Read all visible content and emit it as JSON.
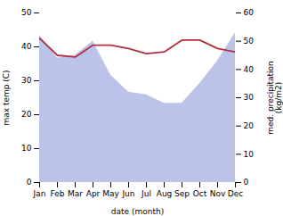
{
  "chart_data": {
    "type": "line",
    "categories": [
      "Jan",
      "Feb",
      "Mar",
      "Apr",
      "May",
      "Jun",
      "Jul",
      "Aug",
      "Sep",
      "Oct",
      "Nov",
      "Dec"
    ],
    "series": [
      {
        "type": "area",
        "axis": "y2",
        "color": "#bbc4e8",
        "values": [
          52,
          44,
          45,
          50,
          38,
          32,
          31,
          28,
          28,
          35,
          43,
          53
        ]
      },
      {
        "type": "line",
        "color": "#b03040",
        "values": [
          42.5,
          37.5,
          37.0,
          40.5,
          40.5,
          39.5,
          38.0,
          38.5,
          42.0,
          42.0,
          39.5,
          38.5
        ]
      }
    ],
    "xlabel": "date (month)",
    "ylabel": "max temp (C)",
    "y2label": "med. precipitation\n(kg/m2)",
    "ylim": [
      0,
      50
    ],
    "yticks": [
      0,
      10,
      20,
      30,
      40,
      50
    ],
    "y2lim": [
      0,
      60
    ],
    "y2ticks": [
      0,
      10,
      20,
      30,
      40,
      50,
      60
    ],
    "grid": false
  }
}
